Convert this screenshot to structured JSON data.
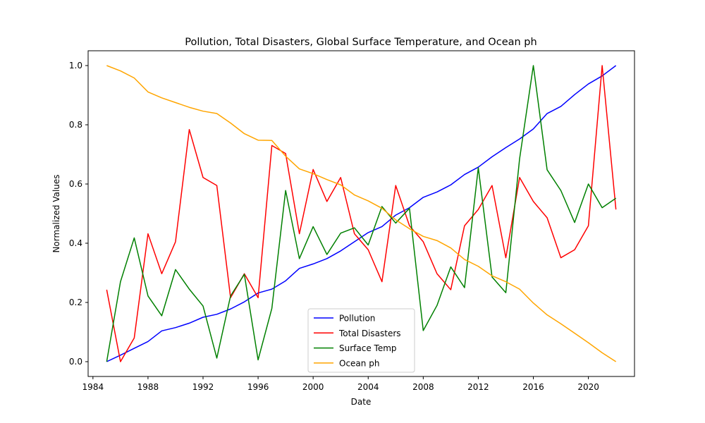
{
  "chart_data": {
    "type": "line",
    "title": "Pollution, Total Disasters, Global Surface Temperature, and Ocean ph",
    "xlabel": "Date",
    "ylabel": "Normalized Values",
    "xlim": [
      1983.65,
      2023.35
    ],
    "ylim": [
      -0.05,
      1.05
    ],
    "x_ticks": [
      1984,
      1988,
      1992,
      1996,
      2000,
      2004,
      2008,
      2012,
      2016,
      2020
    ],
    "y_ticks": [
      "0.0",
      "0.2",
      "0.4",
      "0.6",
      "0.8",
      "1.0"
    ],
    "grid": false,
    "legend_position": "lower-center",
    "x": [
      1985,
      1986,
      1987,
      1988,
      1989,
      1990,
      1991,
      1992,
      1993,
      1994,
      1995,
      1996,
      1997,
      1998,
      1999,
      2000,
      2001,
      2002,
      2003,
      2004,
      2005,
      2006,
      2007,
      2008,
      2009,
      2010,
      2011,
      2012,
      2013,
      2014,
      2015,
      2016,
      2017,
      2018,
      2019,
      2020,
      2021,
      2022
    ],
    "series": [
      {
        "name": "Pollution",
        "color": "#0000ff",
        "values": [
          0.0,
          0.022,
          0.045,
          0.068,
          0.104,
          0.115,
          0.13,
          0.15,
          0.16,
          0.178,
          0.202,
          0.232,
          0.245,
          0.273,
          0.315,
          0.33,
          0.348,
          0.374,
          0.405,
          0.436,
          0.456,
          0.495,
          0.52,
          0.555,
          0.573,
          0.597,
          0.632,
          0.657,
          0.692,
          0.723,
          0.752,
          0.786,
          0.838,
          0.862,
          0.902,
          0.938,
          0.965,
          1.0
        ]
      },
      {
        "name": "Total Disasters",
        "color": "#ff0000",
        "values": [
          0.243,
          0.0,
          0.08,
          0.432,
          0.297,
          0.405,
          0.784,
          0.622,
          0.595,
          0.216,
          0.297,
          0.216,
          0.73,
          0.703,
          0.432,
          0.649,
          0.541,
          0.622,
          0.432,
          0.378,
          0.27,
          0.595,
          0.459,
          0.405,
          0.297,
          0.243,
          0.459,
          0.514,
          0.595,
          0.351,
          0.622,
          0.541,
          0.486,
          0.351,
          0.378,
          0.459,
          1.0,
          0.514
        ]
      },
      {
        "name": "Surface Temp",
        "color": "#008000",
        "values": [
          0.0,
          0.27,
          0.418,
          0.222,
          0.155,
          0.311,
          0.245,
          0.188,
          0.012,
          0.222,
          0.295,
          0.006,
          0.18,
          0.578,
          0.348,
          0.456,
          0.362,
          0.434,
          0.452,
          0.394,
          0.524,
          0.468,
          0.518,
          0.105,
          0.19,
          0.32,
          0.25,
          0.655,
          0.286,
          0.233,
          0.685,
          1.0,
          0.648,
          0.578,
          0.47,
          0.6,
          0.52,
          0.552
        ]
      },
      {
        "name": "Ocean ph",
        "color": "#ffa500",
        "values": [
          1.0,
          0.982,
          0.958,
          0.911,
          0.891,
          0.875,
          0.859,
          0.846,
          0.838,
          0.806,
          0.77,
          0.748,
          0.747,
          0.694,
          0.651,
          0.635,
          0.615,
          0.597,
          0.563,
          0.543,
          0.518,
          0.479,
          0.449,
          0.423,
          0.409,
          0.384,
          0.345,
          0.322,
          0.29,
          0.27,
          0.245,
          0.198,
          0.158,
          0.128,
          0.096,
          0.064,
          0.03,
          0.0
        ]
      }
    ]
  }
}
